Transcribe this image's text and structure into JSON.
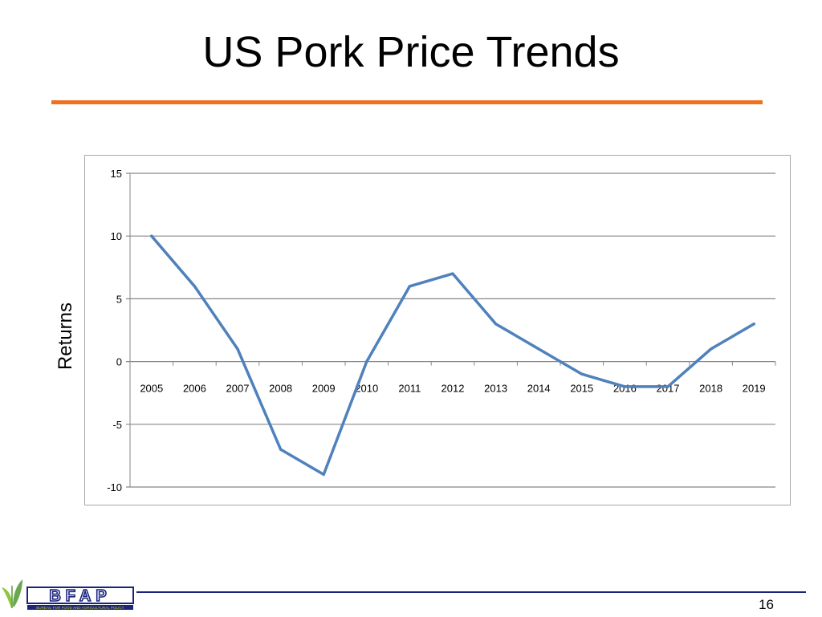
{
  "slide": {
    "title": "US Pork Price Trends",
    "page_number": "16",
    "accent_color": "#f07020",
    "footer_rule_color": "#1a237e"
  },
  "logo": {
    "text": "BFAP",
    "tagline": "BUREAU FOR FOOD AND AGRICULTURAL POLICY",
    "icon": "leaf-icon"
  },
  "chart_data": {
    "type": "line",
    "title": "",
    "xlabel": "",
    "ylabel": "Returns",
    "categories": [
      "2005",
      "2006",
      "2007",
      "2008",
      "2009",
      "2010",
      "2011",
      "2012",
      "2013",
      "2014",
      "2015",
      "2016",
      "2017",
      "2018",
      "2019"
    ],
    "series": [
      {
        "values": [
          10,
          6,
          1,
          -7,
          -9,
          0,
          6,
          7,
          3,
          1,
          -1,
          -2,
          -2,
          1,
          3
        ],
        "color": "#4f81bd"
      }
    ],
    "ylim": [
      -10,
      15
    ],
    "yticks": [
      15,
      10,
      5,
      0,
      -5,
      -10
    ],
    "grid": true,
    "legend": "none",
    "x_labels_at": 0
  }
}
